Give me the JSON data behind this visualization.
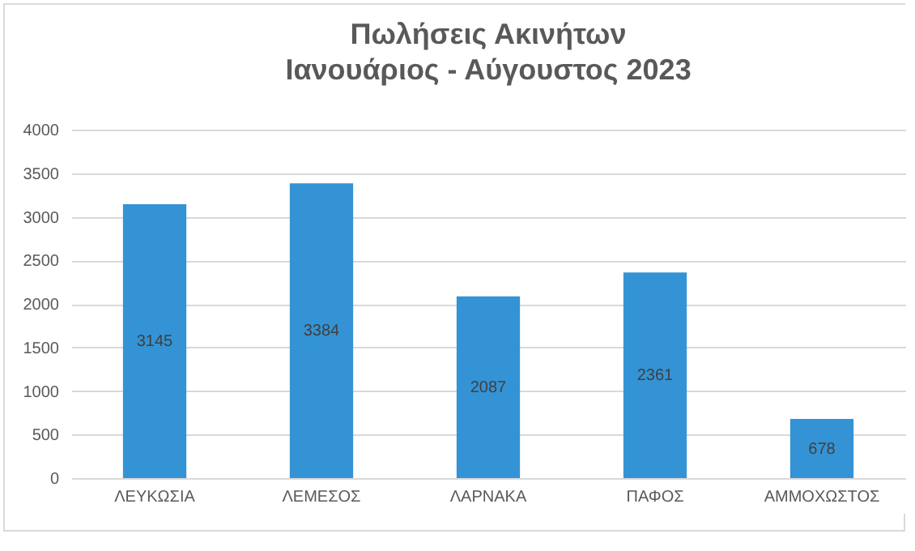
{
  "chart_data": {
    "type": "bar",
    "title": "Πωλήσεις Ακινήτων",
    "subtitle": "Ιανουάριος - Αύγουστος 2023",
    "categories": [
      "ΛΕΥΚΩΣΙΑ",
      "ΛΕΜΕΣΟΣ",
      "ΛΑΡΝΑΚΑ",
      "ΠΑΦΟΣ",
      "ΑΜΜΟΧΩΣΤΟΣ"
    ],
    "values": [
      3145,
      3384,
      2087,
      2361,
      678
    ],
    "color": "#3493d4",
    "ylim": [
      0,
      4000
    ],
    "yticks": [
      0,
      500,
      1000,
      1500,
      2000,
      2500,
      3000,
      3500,
      4000
    ],
    "grid": "y",
    "data_labels": true
  }
}
